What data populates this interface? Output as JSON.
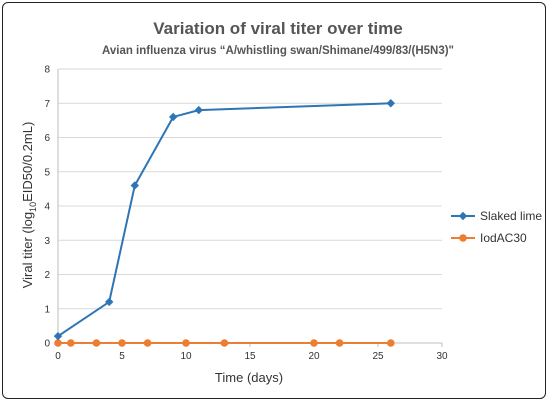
{
  "chart_data": {
    "type": "line",
    "title": "Variation of viral titer over time",
    "subtitle": "Avian influenza virus “A/whistling swan/Shimane/499/83/(H5N3)\"",
    "xlabel": "Time (days)",
    "ylabel": {
      "prefix": "Viral titer (log",
      "subscript": "10",
      "suffix": "EID50/0.2mL)"
    },
    "xlim": [
      0,
      30
    ],
    "ylim": [
      0,
      8
    ],
    "xticks": [
      0,
      5,
      10,
      15,
      20,
      25,
      30
    ],
    "yticks": [
      0,
      1,
      2,
      3,
      4,
      5,
      6,
      7,
      8
    ],
    "legend_position": "right",
    "series": [
      {
        "name": "Slaked lime",
        "color": "#2e75b6",
        "marker": "diamond",
        "x": [
          0,
          4,
          6,
          9,
          11,
          26
        ],
        "y": [
          0.2,
          1.2,
          4.6,
          6.6,
          6.8,
          7.0
        ]
      },
      {
        "name": "IodAC30",
        "color": "#ed7d31",
        "marker": "circle",
        "x": [
          0,
          1,
          3,
          5,
          7,
          10,
          13,
          20,
          22,
          26
        ],
        "y": [
          0,
          0,
          0,
          0,
          0,
          0,
          0,
          0,
          0,
          0
        ]
      }
    ]
  }
}
